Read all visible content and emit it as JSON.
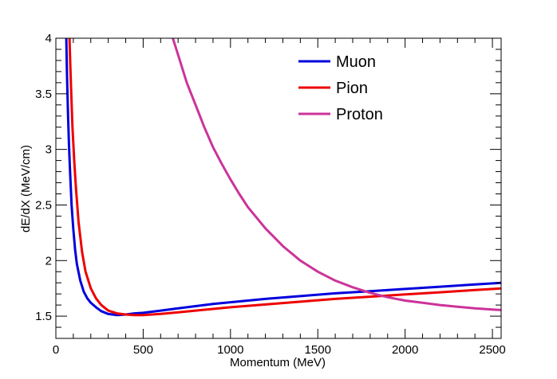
{
  "chart_data": {
    "type": "line",
    "xlabel": "Momentum (MeV)",
    "ylabel": "dE/dX (MeV/cm)",
    "xlim": [
      0,
      2550
    ],
    "ylim": [
      1.3,
      4.0
    ],
    "x_ticks": [
      {
        "value": 0,
        "label": "0"
      },
      {
        "value": 500,
        "label": "500"
      },
      {
        "value": 1000,
        "label": "1000"
      },
      {
        "value": 1500,
        "label": "1500"
      },
      {
        "value": 2000,
        "label": "2000"
      },
      {
        "value": 2500,
        "label": "2500"
      }
    ],
    "y_ticks": [
      {
        "value": 1.5,
        "label": "1.5"
      },
      {
        "value": 2,
        "label": "2"
      },
      {
        "value": 2.5,
        "label": "2.5"
      },
      {
        "value": 3,
        "label": "3"
      },
      {
        "value": 3.5,
        "label": "3.5"
      },
      {
        "value": 4,
        "label": "4"
      }
    ],
    "grid": false,
    "legend_position": "top-right",
    "series": [
      {
        "name": "Muon",
        "color": "#0000dd",
        "points": [
          [
            60,
            4.0
          ],
          [
            62,
            3.8
          ],
          [
            65,
            3.6
          ],
          [
            70,
            3.3
          ],
          [
            75,
            3.05
          ],
          [
            80,
            2.85
          ],
          [
            90,
            2.5
          ],
          [
            100,
            2.28
          ],
          [
            110,
            2.1
          ],
          [
            120,
            1.97
          ],
          [
            140,
            1.82
          ],
          [
            160,
            1.72
          ],
          [
            180,
            1.66
          ],
          [
            200,
            1.62
          ],
          [
            230,
            1.58
          ],
          [
            260,
            1.545
          ],
          [
            300,
            1.52
          ],
          [
            350,
            1.51
          ],
          [
            400,
            1.515
          ],
          [
            450,
            1.525
          ],
          [
            500,
            1.53
          ],
          [
            600,
            1.55
          ],
          [
            700,
            1.57
          ],
          [
            800,
            1.59
          ],
          [
            900,
            1.61
          ],
          [
            1000,
            1.625
          ],
          [
            1200,
            1.655
          ],
          [
            1400,
            1.68
          ],
          [
            1600,
            1.705
          ],
          [
            1800,
            1.725
          ],
          [
            2000,
            1.745
          ],
          [
            2200,
            1.765
          ],
          [
            2400,
            1.785
          ],
          [
            2550,
            1.8
          ]
        ]
      },
      {
        "name": "Pion",
        "color": "#ee0000",
        "points": [
          [
            78,
            4.0
          ],
          [
            82,
            3.8
          ],
          [
            88,
            3.5
          ],
          [
            95,
            3.2
          ],
          [
            105,
            2.9
          ],
          [
            115,
            2.65
          ],
          [
            130,
            2.35
          ],
          [
            150,
            2.08
          ],
          [
            170,
            1.9
          ],
          [
            200,
            1.75
          ],
          [
            230,
            1.66
          ],
          [
            260,
            1.6
          ],
          [
            300,
            1.55
          ],
          [
            350,
            1.525
          ],
          [
            400,
            1.515
          ],
          [
            450,
            1.51
          ],
          [
            500,
            1.51
          ],
          [
            600,
            1.52
          ],
          [
            700,
            1.535
          ],
          [
            800,
            1.55
          ],
          [
            900,
            1.565
          ],
          [
            1000,
            1.58
          ],
          [
            1200,
            1.605
          ],
          [
            1400,
            1.63
          ],
          [
            1600,
            1.655
          ],
          [
            1800,
            1.675
          ],
          [
            2000,
            1.695
          ],
          [
            2200,
            1.715
          ],
          [
            2400,
            1.735
          ],
          [
            2550,
            1.75
          ]
        ]
      },
      {
        "name": "Proton",
        "color": "#cc3399",
        "points": [
          [
            670,
            4.0
          ],
          [
            700,
            3.85
          ],
          [
            750,
            3.6
          ],
          [
            800,
            3.4
          ],
          [
            850,
            3.2
          ],
          [
            900,
            3.02
          ],
          [
            950,
            2.87
          ],
          [
            1000,
            2.73
          ],
          [
            1050,
            2.6
          ],
          [
            1100,
            2.48
          ],
          [
            1200,
            2.29
          ],
          [
            1300,
            2.13
          ],
          [
            1400,
            2.0
          ],
          [
            1500,
            1.9
          ],
          [
            1600,
            1.82
          ],
          [
            1700,
            1.76
          ],
          [
            1800,
            1.71
          ],
          [
            1900,
            1.67
          ],
          [
            2000,
            1.64
          ],
          [
            2100,
            1.62
          ],
          [
            2200,
            1.6
          ],
          [
            2300,
            1.585
          ],
          [
            2400,
            1.57
          ],
          [
            2500,
            1.56
          ],
          [
            2550,
            1.555
          ]
        ]
      }
    ]
  }
}
